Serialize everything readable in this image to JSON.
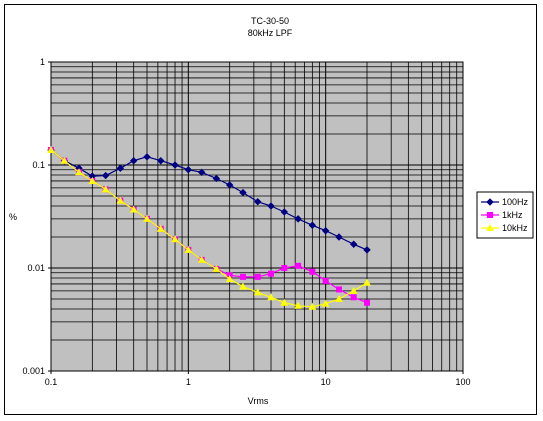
{
  "chart_data": {
    "type": "line",
    "title": "TC-30-50",
    "subtitle": "80kHz LPF",
    "xlabel": "Vrms",
    "ylabel": "%",
    "x_scale": "log",
    "y_scale": "log",
    "xlim": [
      0.1,
      100
    ],
    "ylim": [
      0.001,
      1
    ],
    "x_ticks": [
      "0.1",
      "1",
      "10",
      "100"
    ],
    "y_ticks": [
      "1",
      "0.1",
      "0.01",
      "0.001"
    ],
    "grid": true,
    "legend_position": "right",
    "series": [
      {
        "name": "100Hz",
        "color": "#000080",
        "marker": "diamond",
        "x": [
          0.1,
          0.125,
          0.16,
          0.2,
          0.25,
          0.32,
          0.4,
          0.5,
          0.63,
          0.8,
          1.0,
          1.25,
          1.6,
          2.0,
          2.5,
          3.2,
          4.0,
          5.0,
          6.3,
          8.0,
          10,
          12.5,
          16,
          20
        ],
        "y": [
          0.14,
          0.11,
          0.093,
          0.078,
          0.079,
          0.093,
          0.11,
          0.12,
          0.11,
          0.1,
          0.09,
          0.085,
          0.074,
          0.064,
          0.054,
          0.044,
          0.04,
          0.035,
          0.03,
          0.026,
          0.023,
          0.02,
          0.017,
          0.015
        ]
      },
      {
        "name": "1kHz",
        "color": "#ff00ff",
        "marker": "square",
        "x": [
          0.1,
          0.125,
          0.16,
          0.2,
          0.25,
          0.32,
          0.4,
          0.5,
          0.63,
          0.8,
          1.0,
          1.25,
          1.6,
          2.0,
          2.5,
          3.2,
          4.0,
          5.0,
          6.3,
          8.0,
          10,
          12.5,
          16,
          20
        ],
        "y": [
          0.14,
          0.11,
          0.085,
          0.07,
          0.058,
          0.045,
          0.037,
          0.03,
          0.024,
          0.019,
          0.015,
          0.012,
          0.0098,
          0.0085,
          0.0082,
          0.0082,
          0.0088,
          0.01,
          0.0105,
          0.0092,
          0.0075,
          0.0062,
          0.0052,
          0.0046
        ]
      },
      {
        "name": "10kHz",
        "color": "#ffff00",
        "marker": "triangle",
        "x": [
          0.1,
          0.125,
          0.16,
          0.2,
          0.25,
          0.32,
          0.4,
          0.5,
          0.63,
          0.8,
          1.0,
          1.25,
          1.6,
          2.0,
          2.5,
          3.2,
          4.0,
          5.0,
          6.3,
          8.0,
          10,
          12.5,
          16,
          20
        ],
        "y": [
          0.14,
          0.11,
          0.085,
          0.07,
          0.058,
          0.045,
          0.037,
          0.03,
          0.024,
          0.019,
          0.015,
          0.012,
          0.0098,
          0.0078,
          0.0066,
          0.0058,
          0.0052,
          0.0046,
          0.0043,
          0.0042,
          0.0045,
          0.005,
          0.006,
          0.0072
        ]
      }
    ]
  }
}
